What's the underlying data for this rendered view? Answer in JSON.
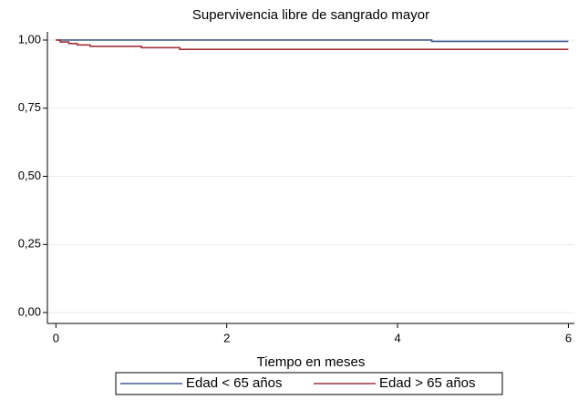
{
  "chart_data": {
    "type": "line",
    "step": true,
    "title": "Supervivencia libre de sangrado mayor",
    "xlabel": "Tiempo en meses",
    "xlim": [
      -0.1,
      6.07
    ],
    "xticks": [
      0,
      2,
      4,
      6
    ],
    "ylim": [
      -0.04,
      1.03
    ],
    "yticks": [
      {
        "value": 0,
        "label": "0,00"
      },
      {
        "value": 0.25,
        "label": "0,25"
      },
      {
        "value": 0.5,
        "label": "0,50"
      },
      {
        "value": 0.75,
        "label": "0,75"
      },
      {
        "value": 1,
        "label": "1,00"
      }
    ],
    "grid": true,
    "legend": "bottom",
    "series": [
      {
        "name": "Edad < 65 años",
        "color": "#3f5f94",
        "x": [
          0,
          4.4,
          4.4,
          6
        ],
        "values": [
          1,
          1,
          0.995,
          0.995
        ]
      },
      {
        "name": "Edad > 65 años",
        "color": "#a3313b",
        "x": [
          0,
          0.05,
          0.05,
          0.15,
          0.15,
          0.25,
          0.25,
          0.4,
          0.4,
          1.0,
          1.0,
          1.45,
          1.45,
          6
        ],
        "values": [
          1,
          1,
          0.993,
          0.993,
          0.987,
          0.987,
          0.982,
          0.982,
          0.977,
          0.977,
          0.972,
          0.972,
          0.966,
          0.966
        ]
      }
    ]
  }
}
